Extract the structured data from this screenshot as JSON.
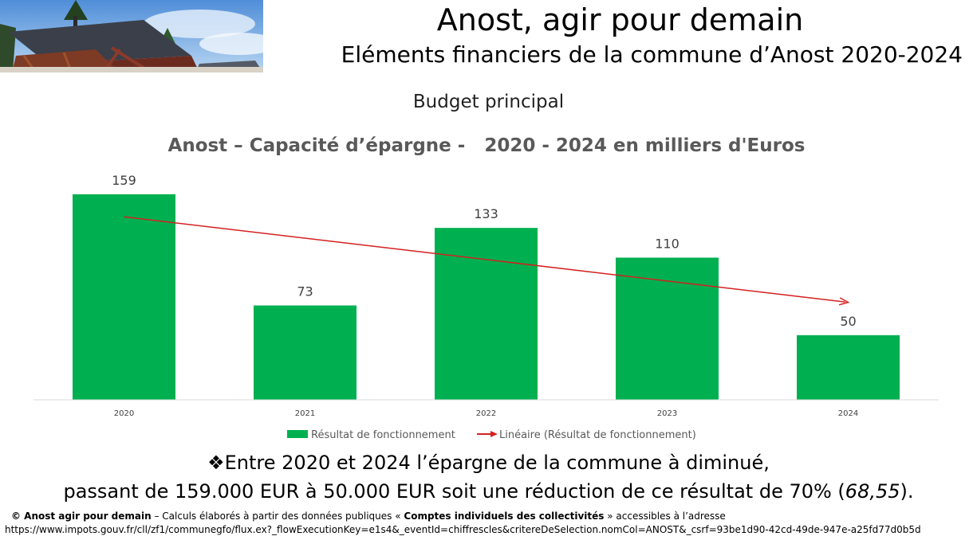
{
  "header": {
    "title": "Anost, agir pour demain",
    "subtitle": "Eléments financiers de la commune d’Anost 2020-2024"
  },
  "section_title": "Budget principal",
  "chart_data": {
    "type": "bar",
    "title": "Anost – Capacité d’épargne -   2020 - 2024 en milliers d'Euros",
    "categories": [
      "2020",
      "2021",
      "2022",
      "2023",
      "2024"
    ],
    "series": [
      {
        "name": "Résultat de fonctionnement",
        "values": [
          159,
          73,
          133,
          110,
          50
        ],
        "color": "#00b050"
      }
    ],
    "trendline": {
      "name": "Linéaire (Résultat de fonctionnement)",
      "color": "#d42020",
      "start": 141.6,
      "end": 75.4
    },
    "ylim": [
      0,
      175
    ],
    "grid": false,
    "legend": "bottom"
  },
  "summary": {
    "bullet": "❖",
    "line1": "Entre 2020 et 2024 l’épargne de la commune à diminué,",
    "line2_main": "passant de 159.000 EUR à 50.000 EUR soit une réduction de ce résultat de 70% (",
    "line2_italic": "68,55",
    "line2_end": ")."
  },
  "footer": {
    "copyright": "© Anost agir pour demain",
    "text1": " – Calculs élaborés à partir des données publiques « ",
    "source_name": "Comptes individuels des collectivités",
    "text2": " » accessibles à l’adresse",
    "url": "https://www.impots.gouv.fr/cll/zf1/communegfo/flux.ex?_flowExecutionKey=e1s4&_eventId=chiffrescles&critereDeSelection.nomCol=ANOST&_csrf=93be1d90-42cd-49de-947e-a25fd77d0b5d"
  }
}
